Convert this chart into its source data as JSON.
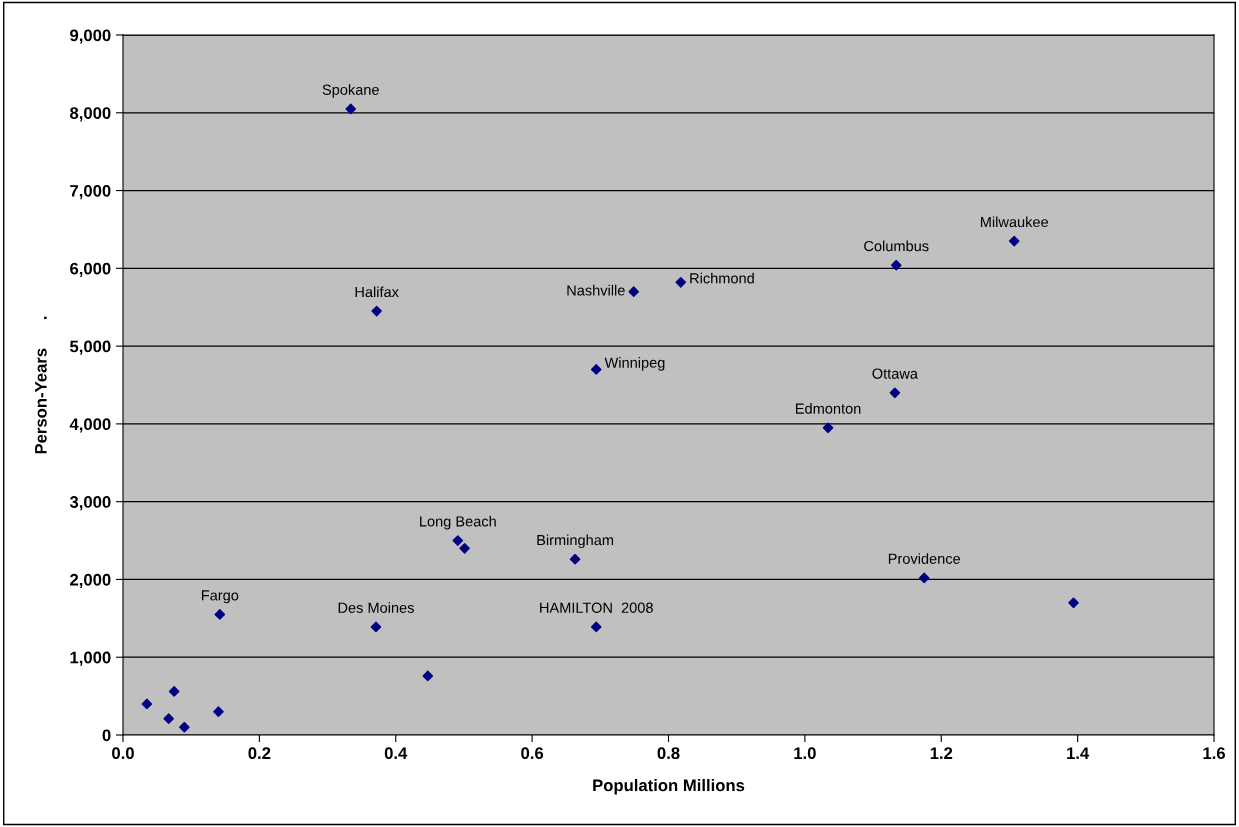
{
  "chart_data": {
    "type": "scatter",
    "xlabel": "Population Millions",
    "ylabel": "Person-Years      .",
    "x": [
      0.334,
      0.372,
      0.749,
      0.818,
      0.694,
      1.134,
      1.307,
      1.132,
      1.034,
      0.491,
      0.501,
      0.663,
      0.694,
      0.371,
      0.142,
      0.447,
      0.035,
      0.075,
      0.067,
      0.09,
      0.14,
      1.175,
      1.394
    ],
    "series": [
      {
        "color": "#000080",
        "values": [
          8050,
          5450,
          5700,
          5820,
          4700,
          6040,
          6350,
          4400,
          3950,
          2500,
          2400,
          2260,
          1390,
          1390,
          1550,
          760,
          400,
          560,
          210,
          100,
          300,
          2020,
          1700
        ]
      }
    ],
    "marker": "diamond",
    "grid": "y",
    "xlim": [
      0.0,
      1.6
    ],
    "xticks": [
      {
        "value": 0,
        "label": "0.0"
      },
      {
        "value": 0.2,
        "label": "0.2"
      },
      {
        "value": 0.4,
        "label": "0.4"
      },
      {
        "value": 0.6,
        "label": "0.6"
      },
      {
        "value": 0.8,
        "label": "0.8"
      },
      {
        "value": 1.0,
        "label": "1.0"
      },
      {
        "value": 1.2,
        "label": "1.2"
      },
      {
        "value": 1.4,
        "label": "1.4"
      },
      {
        "value": 1.6,
        "label": "1.6"
      }
    ],
    "ylim": [
      0,
      9000
    ],
    "yticks": [
      {
        "value": 0,
        "label": "0"
      },
      {
        "value": 1000,
        "label": "1,000"
      },
      {
        "value": 2000,
        "label": "2,000"
      },
      {
        "value": 3000,
        "label": "3,000"
      },
      {
        "value": 4000,
        "label": "4,000"
      },
      {
        "value": 5000,
        "label": "5,000"
      },
      {
        "value": 6000,
        "label": "6,000"
      },
      {
        "value": 7000,
        "label": "7,000"
      },
      {
        "value": 8000,
        "label": "8,000"
      },
      {
        "value": 9000,
        "label": "9,000"
      }
    ],
    "annotations": [
      {
        "text": "Spokane",
        "x": 0.334,
        "y": 8050
      },
      {
        "text": "Halifax",
        "x": 0.372,
        "y": 5450
      },
      {
        "text": "Nashville",
        "x": 0.749,
        "y": 5700
      },
      {
        "text": "Richmond",
        "x": 0.818,
        "y": 5820
      },
      {
        "text": "Winnipeg",
        "x": 0.694,
        "y": 4700
      },
      {
        "text": "Columbus",
        "x": 1.134,
        "y": 6040
      },
      {
        "text": "Milwaukee",
        "x": 1.307,
        "y": 6350
      },
      {
        "text": "Ottawa",
        "x": 1.132,
        "y": 4400
      },
      {
        "text": "Edmonton",
        "x": 1.034,
        "y": 3950
      },
      {
        "text": "Long Beach",
        "x": 0.491,
        "y": 2500
      },
      {
        "text": "Birmingham",
        "x": 0.663,
        "y": 2260
      },
      {
        "text": "HAMILTON  2008",
        "x": 0.694,
        "y": 1390
      },
      {
        "text": "Des Moines",
        "x": 0.371,
        "y": 1390
      },
      {
        "text": "Fargo",
        "x": 0.142,
        "y": 1550
      },
      {
        "text": "Providence",
        "x": 1.175,
        "y": 2020
      }
    ]
  }
}
